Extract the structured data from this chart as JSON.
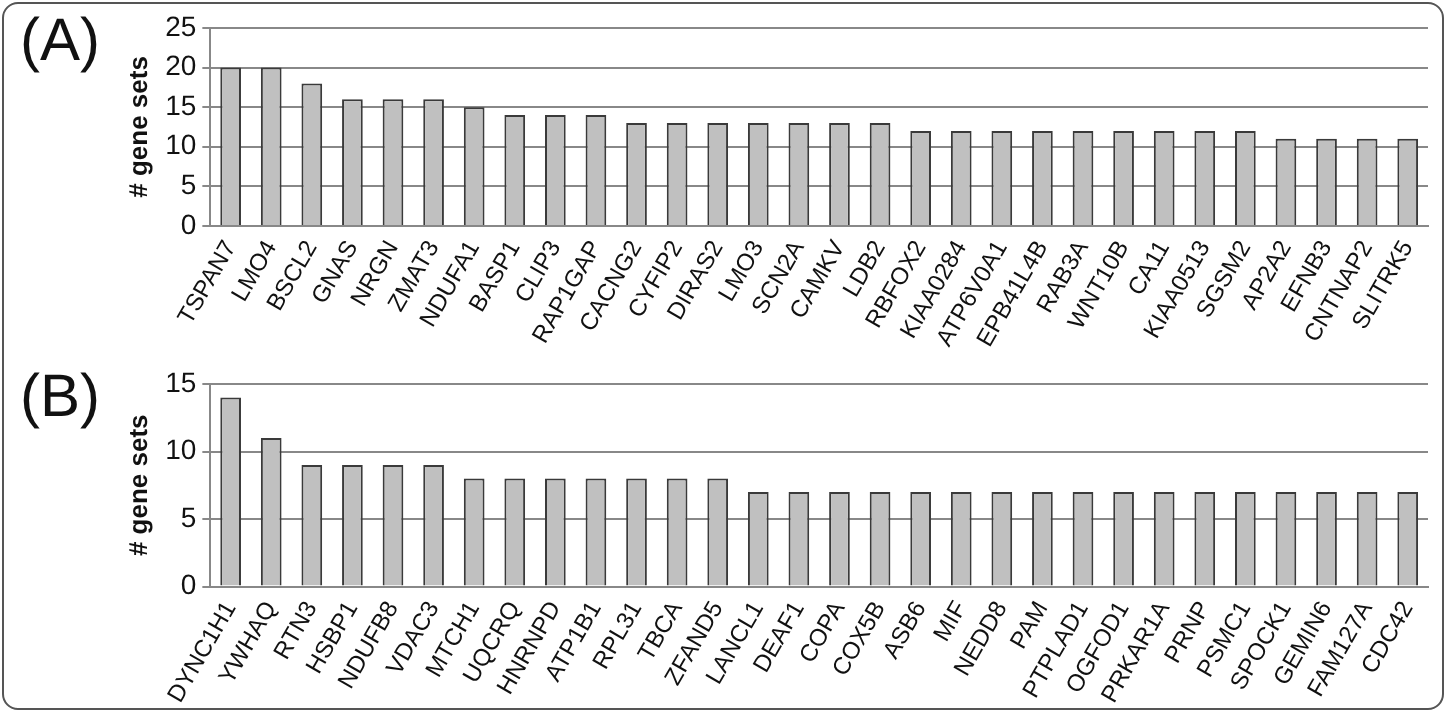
{
  "chart_data": [
    {
      "type": "bar",
      "title": "(A)",
      "ylabel": "# gene sets",
      "categories": [
        "TSPAN7",
        "LMO4",
        "BSCL2",
        "GNAS",
        "NRGN",
        "ZMAT3",
        "NDUFA1",
        "BASP1",
        "CLIP3",
        "RAP1GAP",
        "CACNG2",
        "CYFIP2",
        "DIRAS2",
        "LMO3",
        "SCN2A",
        "CAMKV",
        "LDB2",
        "RBFOX2",
        "KIAA0284",
        "ATP6V0A1",
        "EPB41L4B",
        "RAB3A",
        "WNT10B",
        "CA11",
        "KIAA0513",
        "SGSM2",
        "AP2A2",
        "EFNB3",
        "CNTNAP2",
        "SLITRK5"
      ],
      "values": [
        20,
        20,
        18,
        16,
        16,
        16,
        15,
        14,
        14,
        14,
        13,
        13,
        13,
        13,
        13,
        13,
        13,
        12,
        12,
        12,
        12,
        12,
        12,
        12,
        12,
        12,
        11,
        11,
        11,
        11
      ],
      "color": "#c0c0c0",
      "ylim": [
        0,
        25
      ],
      "yticks": [
        0,
        5,
        10,
        15,
        20,
        25
      ],
      "grid": "y",
      "legend": false
    },
    {
      "type": "bar",
      "title": "(B)",
      "ylabel": "# gene sets",
      "categories": [
        "DYNC1H1",
        "YWHAQ",
        "RTN3",
        "HSBP1",
        "NDUFB8",
        "VDAC3",
        "MTCH1",
        "UQCRQ",
        "HNRNPD",
        "ATP1B1",
        "RPL31",
        "TBCA",
        "ZFAND5",
        "LANCL1",
        "DEAF1",
        "COPA",
        "COX5B",
        "ASB6",
        "MIF",
        "NEDD8",
        "PAM",
        "PTPLAD1",
        "OGFOD1",
        "PRKAR1A",
        "PRNP",
        "PSMC1",
        "SPOCK1",
        "GEMIN6",
        "FAM127A",
        "CDC42"
      ],
      "values": [
        14,
        11,
        9,
        9,
        9,
        9,
        8,
        8,
        8,
        8,
        8,
        8,
        8,
        7,
        7,
        7,
        7,
        7,
        7,
        7,
        7,
        7,
        7,
        7,
        7,
        7,
        7,
        7,
        7,
        7
      ],
      "color": "#c0c0c0",
      "ylim": [
        0,
        15
      ],
      "yticks": [
        0,
        5,
        10,
        15
      ],
      "grid": "y",
      "legend": false
    }
  ]
}
